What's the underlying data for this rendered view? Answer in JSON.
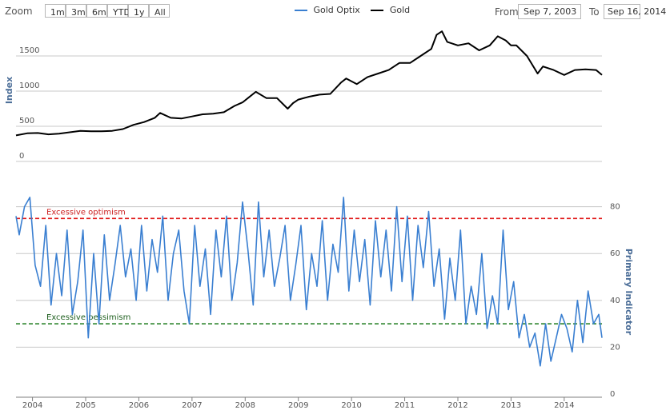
{
  "toolbar": {
    "zoom_label": "Zoom",
    "buttons": [
      "1m",
      "3m",
      "6m",
      "YTD",
      "1y",
      "All"
    ],
    "from_label": "From",
    "from_value": "Sep 7, 2003",
    "to_label": "To",
    "to_value": "Sep 16, 2014"
  },
  "colors": {
    "gold_optix": "#3a7fd1",
    "gold": "#000000",
    "optimism": "#e11d1d",
    "pessimism": "#1b7a1b",
    "grid": "#c8c8c8"
  },
  "chart_data": [
    {
      "type": "line",
      "ylabel": "Index",
      "ylim": [
        0,
        2000
      ],
      "yticks": [
        0,
        500,
        1000,
        1500
      ],
      "xlim": [
        2003.69,
        2014.71
      ],
      "series": [
        {
          "name": "Gold",
          "x": [
            2003.69,
            2003.9,
            2004.1,
            2004.3,
            2004.5,
            2004.7,
            2004.9,
            2005.1,
            2005.3,
            2005.5,
            2005.7,
            2005.9,
            2006.1,
            2006.3,
            2006.4,
            2006.6,
            2006.8,
            2007.0,
            2007.2,
            2007.4,
            2007.6,
            2007.8,
            2007.95,
            2008.1,
            2008.2,
            2008.4,
            2008.6,
            2008.8,
            2008.9,
            2009.0,
            2009.2,
            2009.4,
            2009.6,
            2009.8,
            2009.9,
            2010.1,
            2010.3,
            2010.5,
            2010.7,
            2010.9,
            2011.1,
            2011.3,
            2011.5,
            2011.6,
            2011.7,
            2011.8,
            2012.0,
            2012.2,
            2012.4,
            2012.6,
            2012.75,
            2012.9,
            2013.0,
            2013.1,
            2013.3,
            2013.5,
            2013.6,
            2013.8,
            2014.0,
            2014.2,
            2014.4,
            2014.6,
            2014.71
          ],
          "y": [
            370,
            400,
            405,
            385,
            395,
            415,
            435,
            430,
            430,
            435,
            460,
            520,
            560,
            620,
            690,
            620,
            610,
            640,
            670,
            680,
            700,
            790,
            840,
            930,
            990,
            900,
            900,
            750,
            830,
            880,
            920,
            950,
            960,
            1120,
            1180,
            1100,
            1200,
            1250,
            1300,
            1400,
            1400,
            1500,
            1600,
            1800,
            1850,
            1700,
            1650,
            1680,
            1580,
            1650,
            1780,
            1720,
            1650,
            1650,
            1500,
            1250,
            1350,
            1300,
            1230,
            1300,
            1310,
            1300,
            1230
          ]
        }
      ]
    },
    {
      "type": "line",
      "ylabel": "Primary Indicator",
      "ylim": [
        0,
        85
      ],
      "yticks": [
        0,
        20,
        40,
        60,
        80
      ],
      "xlim": [
        2003.69,
        2014.71
      ],
      "xticks": [
        "2004",
        "2005",
        "2006",
        "2007",
        "2008",
        "2009",
        "2010",
        "2011",
        "2012",
        "2013",
        "2014"
      ],
      "series": [
        {
          "name": "Gold Optix",
          "x": [
            2003.69,
            2003.75,
            2003.85,
            2003.95,
            2004.05,
            2004.15,
            2004.25,
            2004.35,
            2004.45,
            2004.55,
            2004.65,
            2004.75,
            2004.85,
            2004.95,
            2005.05,
            2005.15,
            2005.25,
            2005.35,
            2005.45,
            2005.55,
            2005.65,
            2005.75,
            2005.85,
            2005.95,
            2006.05,
            2006.15,
            2006.25,
            2006.35,
            2006.45,
            2006.55,
            2006.65,
            2006.75,
            2006.85,
            2006.95,
            2007.05,
            2007.15,
            2007.25,
            2007.35,
            2007.45,
            2007.55,
            2007.65,
            2007.75,
            2007.85,
            2007.95,
            2008.05,
            2008.15,
            2008.25,
            2008.35,
            2008.45,
            2008.55,
            2008.65,
            2008.75,
            2008.85,
            2008.95,
            2009.05,
            2009.15,
            2009.25,
            2009.35,
            2009.45,
            2009.55,
            2009.65,
            2009.75,
            2009.85,
            2009.95,
            2010.05,
            2010.15,
            2010.25,
            2010.35,
            2010.45,
            2010.55,
            2010.65,
            2010.75,
            2010.85,
            2010.95,
            2011.05,
            2011.15,
            2011.25,
            2011.35,
            2011.45,
            2011.55,
            2011.65,
            2011.75,
            2011.85,
            2011.95,
            2012.05,
            2012.15,
            2012.25,
            2012.35,
            2012.45,
            2012.55,
            2012.65,
            2012.75,
            2012.85,
            2012.95,
            2013.05,
            2013.15,
            2013.25,
            2013.35,
            2013.45,
            2013.55,
            2013.65,
            2013.75,
            2013.85,
            2013.95,
            2014.05,
            2014.15,
            2014.25,
            2014.35,
            2014.45,
            2014.55,
            2014.65,
            2014.71
          ],
          "y": [
            76,
            68,
            80,
            84,
            55,
            46,
            72,
            38,
            60,
            42,
            70,
            34,
            48,
            70,
            24,
            60,
            30,
            68,
            40,
            55,
            72,
            50,
            62,
            40,
            72,
            44,
            66,
            52,
            76,
            40,
            60,
            70,
            44,
            30,
            72,
            46,
            62,
            34,
            70,
            50,
            76,
            40,
            56,
            82,
            62,
            38,
            82,
            50,
            70,
            46,
            58,
            72,
            40,
            55,
            72,
            36,
            60,
            46,
            74,
            40,
            64,
            52,
            84,
            44,
            70,
            48,
            66,
            38,
            74,
            50,
            70,
            44,
            80,
            48,
            76,
            40,
            72,
            54,
            78,
            46,
            62,
            32,
            58,
            40,
            70,
            30,
            46,
            34,
            60,
            28,
            42,
            30,
            70,
            36,
            48,
            24,
            34,
            20,
            26,
            12,
            30,
            14,
            24,
            34,
            28,
            18,
            40,
            22,
            44,
            30,
            34,
            24
          ]
        }
      ],
      "annotations": [
        {
          "label": "Excessive optimism",
          "y": 75
        },
        {
          "label": "Excessive pessimism",
          "y": 30
        }
      ]
    }
  ]
}
